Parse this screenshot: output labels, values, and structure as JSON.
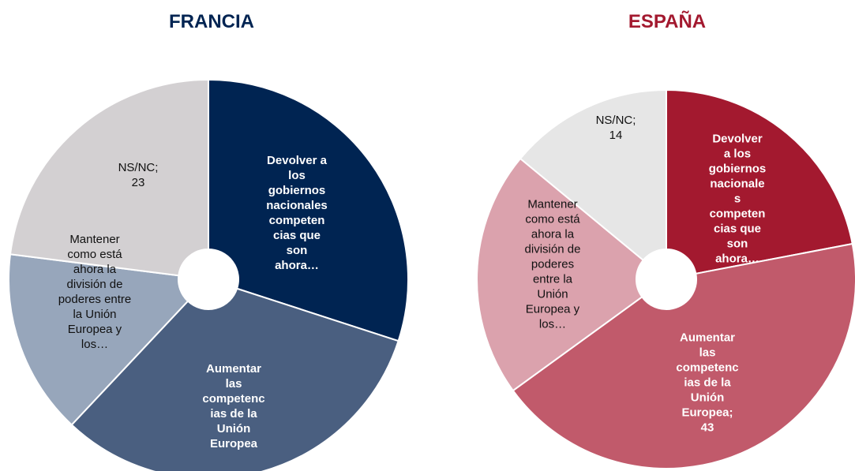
{
  "chart_data": [
    {
      "type": "donut",
      "title": "FRANCIA",
      "title_color": "#002452",
      "labels": [
        "Devolver a los gobiernos nacionales competencias que son ahora…",
        "Aumentar las competencias de la Unión Europea",
        "Mantener como está ahora la división de poderes entre la Unión Europea y los…",
        "NS/NC; 23"
      ],
      "values": [
        30,
        32,
        15,
        23
      ],
      "colors": [
        "#002452",
        "#4a5f80",
        "#97a6bb",
        "#d3d0d2"
      ]
    },
    {
      "type": "donut",
      "title": "ESPAÑA",
      "title_color": "#a3192f",
      "labels": [
        "Devolver a los gobiernos nacionales competencias que son ahora…",
        "Aumentar las competencias de la Unión Europea; 43",
        "Mantener como está ahora la división de poderes entre la Unión Europea y los…",
        "NS/NC; 14"
      ],
      "values": [
        22,
        43,
        21,
        14
      ],
      "colors": [
        "#a3192f",
        "#c15a6b",
        "#dba2ad",
        "#e6e6e6"
      ]
    }
  ]
}
